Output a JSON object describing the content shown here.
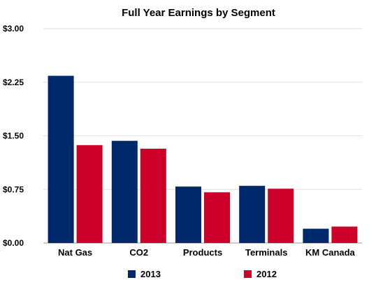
{
  "chart_data": {
    "type": "bar",
    "title": "Full Year Earnings by Segment",
    "xlabel": "",
    "ylabel": "",
    "ylim": [
      0,
      3.0
    ],
    "yticks": [
      0,
      0.75,
      1.5,
      2.25,
      3.0
    ],
    "ytick_labels": [
      "$0.00",
      "$0.75",
      "$1.50",
      "$2.25",
      "$3.00"
    ],
    "categories": [
      "Nat Gas",
      "CO2",
      "Products",
      "Terminals",
      "KM Canada"
    ],
    "series": [
      {
        "name": "2013",
        "color": "#00296b",
        "values": [
          2.34,
          1.43,
          0.79,
          0.8,
          0.2
        ]
      },
      {
        "name": "2012",
        "color": "#cc0029",
        "values": [
          1.37,
          1.32,
          0.71,
          0.76,
          0.23
        ]
      }
    ],
    "grid": true,
    "legend": "bottom"
  }
}
